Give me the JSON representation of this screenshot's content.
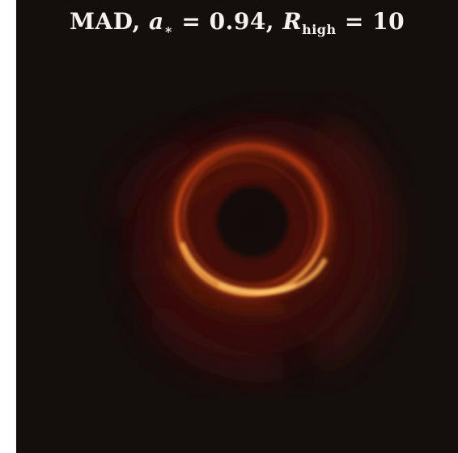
{
  "title": {
    "model": "MAD,",
    "spin_symbol": "a",
    "spin_sub": "∗",
    "spin_eq": "= 0.94,",
    "r_symbol": "R",
    "r_sub": "high",
    "r_eq": "= 10"
  },
  "image": {
    "description_icon": "black-hole-ring",
    "colors": {
      "background": "#140e0d",
      "ring_core": "#ffb04a",
      "ring_outer": "#c8320c",
      "glow": "#5a1408",
      "shadow": "#120b0a"
    }
  }
}
